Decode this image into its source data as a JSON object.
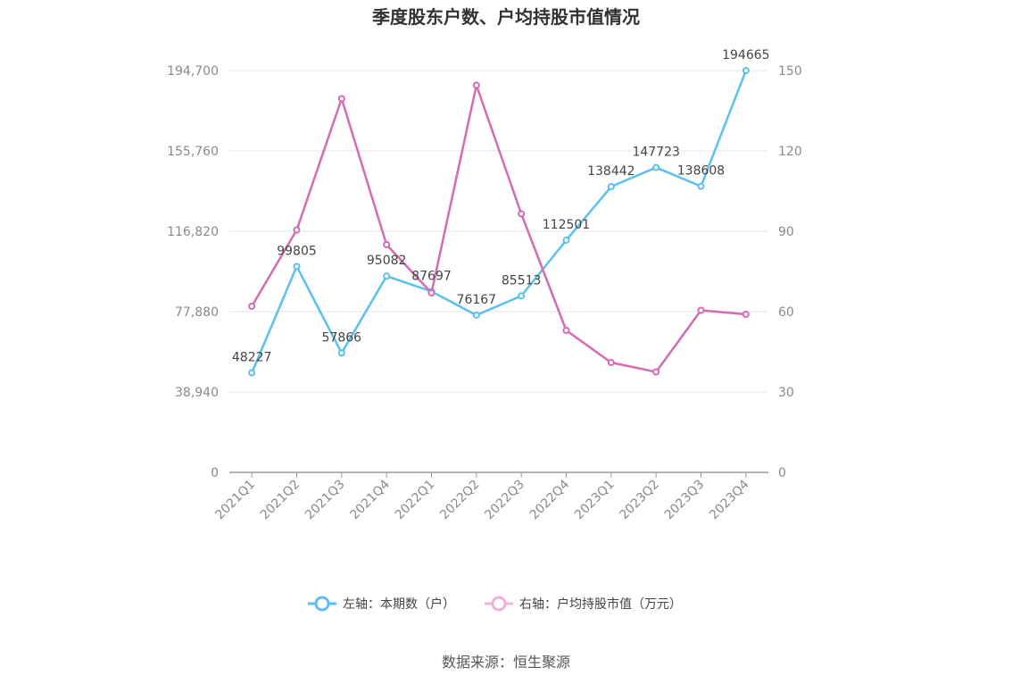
{
  "chart_data": {
    "type": "line",
    "title": "季度股东户数、户均持股市值情况",
    "categories": [
      "2021Q1",
      "2021Q2",
      "2021Q3",
      "2021Q4",
      "2022Q1",
      "2022Q2",
      "2022Q3",
      "2022Q4",
      "2023Q1",
      "2023Q2",
      "2023Q3",
      "2023Q4"
    ],
    "y_left": {
      "ticks": [
        "0",
        "38,940",
        "77,880",
        "116,820",
        "155,760",
        "194,700"
      ],
      "ylim": [
        0,
        194700
      ]
    },
    "y_right": {
      "ticks": [
        "0",
        "30",
        "60",
        "90",
        "120",
        "150"
      ],
      "ylim": [
        0,
        150
      ]
    },
    "series": [
      {
        "name": "左轴：本期数（户）",
        "axis": "left",
        "color": "#5bc0f0",
        "values": [
          48227,
          99805,
          57866,
          95082,
          87697,
          76167,
          85513,
          112501,
          138442,
          147723,
          138608,
          194665
        ],
        "labels": [
          "48227",
          "99805",
          "57866",
          "95082",
          "87697",
          "76167",
          "85513",
          "112501",
          "138442",
          "147723",
          "138608",
          "194665"
        ]
      },
      {
        "name": "右轴：户均持股市值（万元）",
        "axis": "right",
        "color": "#d46bb4",
        "values": [
          62,
          90.5,
          139.5,
          85,
          67,
          144.5,
          96.5,
          53,
          41,
          37.5,
          60.5,
          59
        ]
      }
    ],
    "grid": true,
    "legend_position": "bottom"
  },
  "source": "数据来源：恒生聚源"
}
